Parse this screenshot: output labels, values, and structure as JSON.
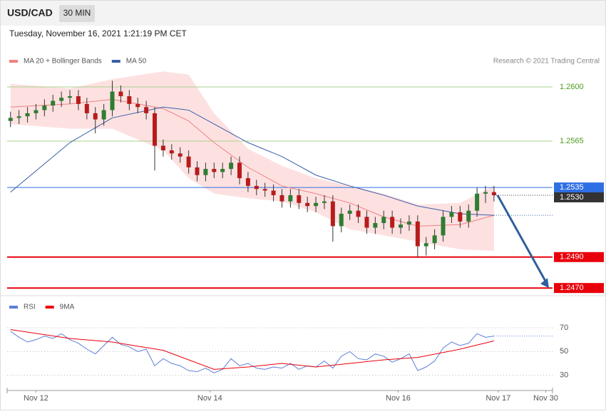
{
  "header": {
    "symbol": "USD/CAD",
    "interval": "30 MIN",
    "datetime": "Tuesday, November 16, 2021 1:21:19 PM CET",
    "credit": "Research © 2021 Trading Central"
  },
  "chart_data": [
    {
      "type": "candlestick",
      "up_color": "#2e7d32",
      "down_color": "#b71c1c",
      "xlim": [
        -0.4,
        63.9
      ],
      "ylim": [
        1.2467,
        1.261
      ],
      "open": [
        1.2578,
        1.258,
        1.2581,
        1.2583,
        1.2585,
        1.2588,
        1.2591,
        1.2593,
        1.2594,
        1.2589,
        1.2583,
        1.2579,
        1.2585,
        1.2597,
        1.2594,
        1.2589,
        1.2587,
        1.2583,
        1.2562,
        1.2559,
        1.2557,
        1.2555,
        1.2548,
        1.2543,
        1.2547,
        1.2545,
        1.2547,
        1.2551,
        1.2541,
        1.2536,
        1.2534,
        1.2533,
        1.253,
        1.2526,
        1.253,
        1.2525,
        1.2523,
        1.2525,
        1.2526,
        1.251,
        1.2518,
        1.252,
        1.2516,
        1.2509,
        1.2512,
        1.2516,
        1.2509,
        1.2511,
        1.2513,
        1.2497,
        1.2499,
        1.2504,
        1.2516,
        1.2519,
        1.2513,
        1.252,
        1.2531,
        1.2532
      ],
      "high": [
        1.2584,
        1.2585,
        1.2587,
        1.2589,
        1.2592,
        1.2595,
        1.2597,
        1.2598,
        1.2598,
        1.2593,
        1.2587,
        1.2589,
        1.2604,
        1.2601,
        1.2598,
        1.2593,
        1.2591,
        1.2587,
        1.2566,
        1.2563,
        1.2561,
        1.2559,
        1.2552,
        1.2551,
        1.2551,
        1.2551,
        1.2555,
        1.2555,
        1.2545,
        1.254,
        1.2538,
        1.2537,
        1.2534,
        1.2534,
        1.2534,
        1.2529,
        1.2529,
        1.253,
        1.253,
        1.2522,
        1.2524,
        1.2524,
        1.252,
        1.2516,
        1.252,
        1.252,
        1.2515,
        1.2517,
        1.2517,
        1.2503,
        1.2508,
        1.252,
        1.2523,
        1.2523,
        1.2524,
        1.2535,
        1.2536,
        1.2536
      ],
      "low": [
        1.2574,
        1.2576,
        1.2577,
        1.2579,
        1.2581,
        1.2584,
        1.2587,
        1.2589,
        1.2585,
        1.2579,
        1.257,
        1.2575,
        1.2581,
        1.259,
        1.2585,
        1.2583,
        1.2579,
        1.2546,
        1.2555,
        1.2553,
        1.2551,
        1.2544,
        1.2539,
        1.2539,
        1.2541,
        1.2541,
        1.2543,
        1.2537,
        1.2532,
        1.253,
        1.2529,
        1.2526,
        1.2522,
        1.2522,
        1.2521,
        1.2519,
        1.2519,
        1.2521,
        1.25,
        1.2506,
        1.2514,
        1.2512,
        1.2505,
        1.2505,
        1.2508,
        1.2505,
        1.2505,
        1.2507,
        1.249,
        1.2491,
        1.2495,
        1.25,
        1.2512,
        1.2509,
        1.2509,
        1.2516,
        1.2525,
        1.2526
      ],
      "close": [
        1.258,
        1.2581,
        1.2583,
        1.2585,
        1.2588,
        1.2591,
        1.2593,
        1.2594,
        1.2589,
        1.2583,
        1.2579,
        1.2585,
        1.2597,
        1.2594,
        1.2589,
        1.2587,
        1.2583,
        1.2562,
        1.2559,
        1.2557,
        1.2555,
        1.2548,
        1.2543,
        1.2547,
        1.2545,
        1.2547,
        1.2551,
        1.2541,
        1.2536,
        1.2534,
        1.2533,
        1.253,
        1.2526,
        1.253,
        1.2525,
        1.2523,
        1.2525,
        1.2526,
        1.251,
        1.2518,
        1.252,
        1.2516,
        1.2509,
        1.2512,
        1.2516,
        1.2509,
        1.2511,
        1.2513,
        1.2497,
        1.2499,
        1.2504,
        1.2516,
        1.2519,
        1.2513,
        1.252,
        1.2531,
        1.2532,
        1.253
      ],
      "series": [
        {
          "name": "MA 20 + Bollinger Bands",
          "color": "#f08080",
          "band_color": "#fde1e1",
          "x": [
            0,
            7,
            12,
            18,
            21,
            24,
            28,
            32,
            36,
            40,
            44,
            48,
            53,
            57
          ],
          "values": [
            1.2587,
            1.2589,
            1.2592,
            1.2586,
            1.2578,
            1.2564,
            1.2548,
            1.2536,
            1.2531,
            1.2525,
            1.2516,
            1.251,
            1.2511,
            1.2517
          ],
          "upper": [
            1.2602,
            1.2599,
            1.2605,
            1.261,
            1.2608,
            1.2583,
            1.256,
            1.2549,
            1.2541,
            1.2536,
            1.2531,
            1.2524,
            1.2525,
            1.2536
          ],
          "lower": [
            1.2576,
            1.2573,
            1.2573,
            1.2559,
            1.2541,
            1.2531,
            1.2528,
            1.2526,
            1.2519,
            1.2508,
            1.2504,
            1.25,
            1.2495,
            1.2494
          ]
        },
        {
          "name": "MA 50",
          "color": "#3a5ea8",
          "x": [
            0,
            7,
            12,
            18,
            21,
            24,
            28,
            32,
            36,
            40,
            44,
            48,
            53,
            57
          ],
          "values": [
            1.2532,
            1.2564,
            1.258,
            1.2587,
            1.2585,
            1.2576,
            1.2564,
            1.2555,
            1.2543,
            1.2536,
            1.253,
            1.2523,
            1.2518,
            1.2517
          ]
        }
      ],
      "levels": [
        {
          "value": 1.26,
          "label": "1.2600",
          "color": "#a9d18e"
        },
        {
          "value": 1.2565,
          "label": "1.2565",
          "color": "#a9d18e"
        },
        {
          "value": 1.2535,
          "label": "1.2535",
          "color": "#2f6fe4"
        },
        {
          "value": 1.249,
          "label": "1.2490",
          "color": "#e8000b"
        },
        {
          "value": 1.247,
          "label": "1.2470",
          "color": "#e8000b"
        }
      ],
      "last_price": {
        "value": 1.253,
        "label": "1.2530",
        "color": "#333333"
      },
      "arrow_color": "#2f5f9e"
    },
    {
      "type": "line",
      "xlim": [
        -0.4,
        63.9
      ],
      "ylim": [
        19,
        82
      ],
      "yticks": [
        30,
        50,
        70
      ],
      "xticks": [
        {
          "value": 3,
          "label": "Nov 12"
        },
        {
          "value": 23.5,
          "label": "Nov 14"
        },
        {
          "value": 45.7,
          "label": "Nov 16"
        },
        {
          "value": 57.5,
          "label": "Nov 17"
        },
        {
          "value": 63.1,
          "label": "Nov 30"
        }
      ],
      "series": [
        {
          "name": "RSI",
          "color": "#5b7fd6",
          "x": [
            0,
            1,
            2,
            3,
            4,
            5,
            6,
            7,
            8,
            9,
            10,
            11,
            12,
            13,
            14,
            15,
            16,
            17,
            18,
            19,
            20,
            21,
            22,
            23,
            24,
            25,
            26,
            27,
            28,
            29,
            30,
            31,
            32,
            33,
            34,
            35,
            36,
            37,
            38,
            39,
            40,
            41,
            42,
            43,
            44,
            45,
            46,
            47,
            48,
            49,
            50,
            51,
            52,
            53,
            54,
            55,
            56,
            57
          ],
          "values": [
            67,
            62,
            58,
            60,
            63,
            61,
            65,
            60,
            57,
            52,
            48,
            55,
            62,
            56,
            54,
            50,
            52,
            38,
            44,
            40,
            38,
            34,
            33,
            36,
            32,
            35,
            44,
            38,
            40,
            36,
            35,
            37,
            36,
            40,
            35,
            38,
            37,
            42,
            36,
            46,
            50,
            44,
            43,
            48,
            46,
            41,
            44,
            48,
            34,
            37,
            42,
            53,
            58,
            55,
            57,
            65,
            62,
            63
          ]
        },
        {
          "name": "9MA",
          "color": "#e8000b",
          "x": [
            0,
            7,
            12,
            18,
            21,
            24,
            28,
            32,
            36,
            40,
            44,
            48,
            53,
            57
          ],
          "values": [
            68.5,
            61,
            58,
            51,
            43,
            35,
            37,
            40,
            37,
            40,
            43,
            45,
            52,
            59
          ]
        }
      ]
    }
  ]
}
